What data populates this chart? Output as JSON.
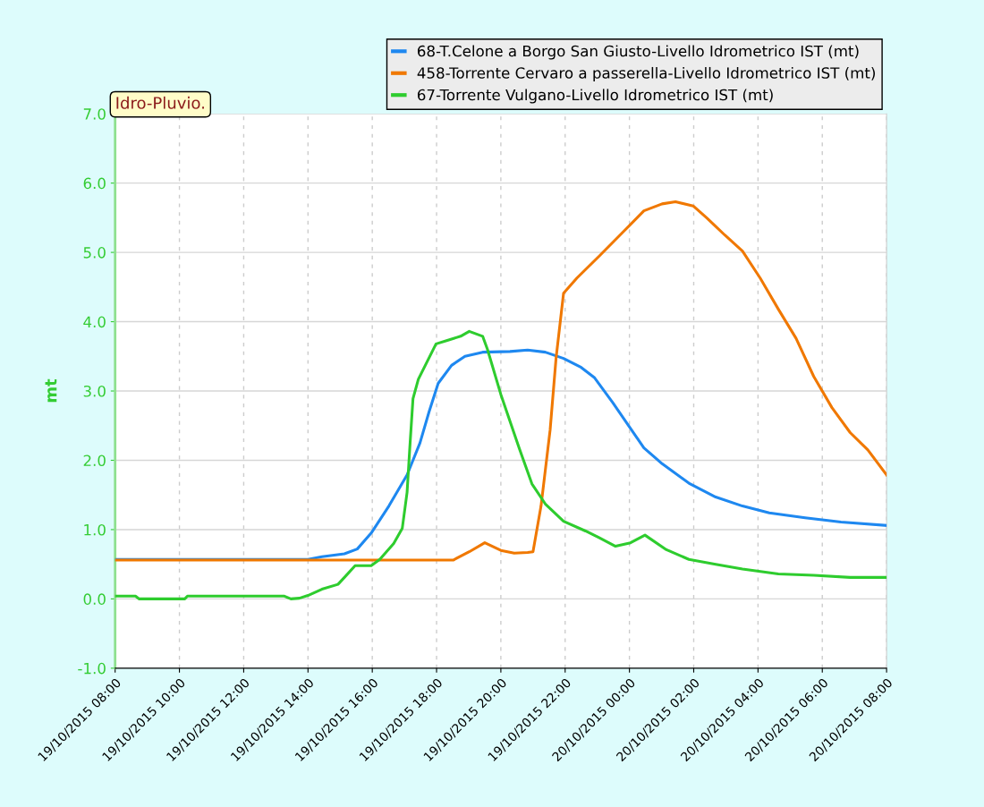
{
  "chart_data": {
    "type": "line",
    "ylabel": "mt",
    "annotations": [
      "Idro-Pluvio."
    ],
    "xlim": [
      "2015-10-19T08:00",
      "2015-10-20T08:00"
    ],
    "xticks": [
      {
        "value": "2015-10-19T08:00",
        "label": "19/10/2015 08:00"
      },
      {
        "value": "2015-10-19T10:00",
        "label": "19/10/2015 10:00"
      },
      {
        "value": "2015-10-19T12:00",
        "label": "19/10/2015 12:00"
      },
      {
        "value": "2015-10-19T14:00",
        "label": "19/10/2015 14:00"
      },
      {
        "value": "2015-10-19T16:00",
        "label": "19/10/2015 16:00"
      },
      {
        "value": "2015-10-19T18:00",
        "label": "19/10/2015 18:00"
      },
      {
        "value": "2015-10-19T20:00",
        "label": "19/10/2015 20:00"
      },
      {
        "value": "2015-10-19T22:00",
        "label": "19/10/2015 22:00"
      },
      {
        "value": "2015-10-20T00:00",
        "label": "20/10/2015 00:00"
      },
      {
        "value": "2015-10-20T02:00",
        "label": "20/10/2015 02:00"
      },
      {
        "value": "2015-10-20T04:00",
        "label": "20/10/2015 04:00"
      },
      {
        "value": "2015-10-20T06:00",
        "label": "20/10/2015 06:00"
      },
      {
        "value": "2015-10-20T08:00",
        "label": "20/10/2015 08:00"
      }
    ],
    "ylim": [
      -1,
      7
    ],
    "yticks": [
      {
        "value": -1,
        "label": "-1.0"
      },
      {
        "value": 0,
        "label": "0.0"
      },
      {
        "value": 1,
        "label": "1.0"
      },
      {
        "value": 2,
        "label": "2.0"
      },
      {
        "value": 3,
        "label": "3.0"
      },
      {
        "value": 4,
        "label": "4.0"
      },
      {
        "value": 5,
        "label": "5.0"
      },
      {
        "value": 6,
        "label": "6.0"
      },
      {
        "value": 7,
        "label": "7.0"
      }
    ],
    "grid": true,
    "legend": "top right",
    "series": [
      {
        "name": "68-T.Celone a Borgo San Giusto-Livello Idrometrico IST (mt)",
        "color": "#1e88f0",
        "x": [
          "2015-10-19T08:00",
          "2015-10-19T14:00",
          "2015-10-19T14:26",
          "2015-10-19T15:08",
          "2015-10-19T15:32",
          "2015-10-19T15:58",
          "2015-10-19T16:31",
          "2015-10-19T17:05",
          "2015-10-19T17:29",
          "2015-10-19T17:46",
          "2015-10-19T18:03",
          "2015-10-19T18:28",
          "2015-10-19T18:53",
          "2015-10-19T19:26",
          "2015-10-19T20:17",
          "2015-10-19T20:50",
          "2015-10-19T21:23",
          "2015-10-19T21:57",
          "2015-10-19T22:30",
          "2015-10-19T22:55",
          "2015-10-19T23:29",
          "2015-10-20T00:02",
          "2015-10-20T00:27",
          "2015-10-20T01:01",
          "2015-10-20T01:51",
          "2015-10-20T02:41",
          "2015-10-20T03:31",
          "2015-10-20T04:21",
          "2015-10-20T05:28",
          "2015-10-20T06:35",
          "2015-10-20T08:00"
        ],
        "values": [
          0.57,
          0.57,
          0.61,
          0.65,
          0.72,
          0.95,
          1.34,
          1.79,
          2.25,
          2.7,
          3.11,
          3.37,
          3.5,
          3.56,
          3.57,
          3.59,
          3.56,
          3.47,
          3.34,
          3.19,
          2.83,
          2.46,
          2.18,
          1.95,
          1.67,
          1.47,
          1.34,
          1.24,
          1.17,
          1.11,
          1.06
        ]
      },
      {
        "name": "458-Torrente Cervaro a passerella-Livello Idrometrico IST (mt)",
        "color": "#f07800",
        "x": [
          "2015-10-19T08:00",
          "2015-10-19T18:31",
          "2015-10-19T19:01",
          "2015-10-19T19:30",
          "2015-10-19T20:00",
          "2015-10-19T20:25",
          "2015-10-19T20:50",
          "2015-10-19T21:00",
          "2015-10-19T21:15",
          "2015-10-19T21:32",
          "2015-10-19T21:43",
          "2015-10-19T21:57",
          "2015-10-19T22:22",
          "2015-10-19T23:04",
          "2015-10-19T23:54",
          "2015-10-20T00:27",
          "2015-10-20T01:01",
          "2015-10-20T01:26",
          "2015-10-20T01:59",
          "2015-10-20T02:24",
          "2015-10-20T02:58",
          "2015-10-20T03:31",
          "2015-10-20T04:04",
          "2015-10-20T04:38",
          "2015-10-20T05:11",
          "2015-10-20T05:44",
          "2015-10-20T06:18",
          "2015-10-20T06:52",
          "2015-10-20T07:25",
          "2015-10-20T08:00"
        ],
        "values": [
          0.56,
          0.56,
          0.68,
          0.81,
          0.7,
          0.66,
          0.67,
          0.68,
          1.34,
          2.44,
          3.47,
          4.41,
          4.63,
          4.95,
          5.34,
          5.6,
          5.7,
          5.73,
          5.67,
          5.5,
          5.25,
          5.02,
          4.63,
          4.18,
          3.76,
          3.21,
          2.76,
          2.4,
          2.15,
          1.79
        ]
      },
      {
        "name": "67-Torrente Vulgano-Livello Idrometrico IST (mt)",
        "color": "#2ecc2e",
        "x": [
          "2015-10-19T08:00",
          "2015-10-19T08:38",
          "2015-10-19T08:45",
          "2015-10-19T10:10",
          "2015-10-19T10:15",
          "2015-10-19T13:16",
          "2015-10-19T13:28",
          "2015-10-19T13:44",
          "2015-10-19T14:00",
          "2015-10-19T14:26",
          "2015-10-19T14:56",
          "2015-10-19T15:08",
          "2015-10-19T15:28",
          "2015-10-19T15:58",
          "2015-10-19T16:14",
          "2015-10-19T16:40",
          "2015-10-19T16:56",
          "2015-10-19T17:05",
          "2015-10-19T17:10",
          "2015-10-19T17:16",
          "2015-10-19T17:26",
          "2015-10-19T17:59",
          "2015-10-19T18:20",
          "2015-10-19T18:45",
          "2015-10-19T19:01",
          "2015-10-19T19:26",
          "2015-10-19T19:35",
          "2015-10-19T20:00",
          "2015-10-19T20:34",
          "2015-10-19T20:58",
          "2015-10-19T21:23",
          "2015-10-19T21:57",
          "2015-10-19T22:38",
          "2015-10-19T23:04",
          "2015-10-19T23:34",
          "2015-10-20T00:02",
          "2015-10-20T00:29",
          "2015-10-20T01:09",
          "2015-10-20T01:51",
          "2015-10-20T02:41",
          "2015-10-20T03:31",
          "2015-10-20T04:38",
          "2015-10-20T05:44",
          "2015-10-20T06:52",
          "2015-10-20T08:00"
        ],
        "values": [
          0.04,
          0.04,
          0.0,
          0.0,
          0.04,
          0.04,
          0.0,
          0.01,
          0.05,
          0.14,
          0.21,
          0.31,
          0.48,
          0.48,
          0.57,
          0.8,
          1.02,
          1.54,
          2.18,
          2.89,
          3.17,
          3.68,
          3.73,
          3.79,
          3.86,
          3.79,
          3.6,
          2.95,
          2.18,
          1.66,
          1.37,
          1.12,
          0.98,
          0.88,
          0.76,
          0.81,
          0.92,
          0.71,
          0.57,
          0.5,
          0.43,
          0.36,
          0.34,
          0.31,
          0.31
        ]
      }
    ]
  }
}
